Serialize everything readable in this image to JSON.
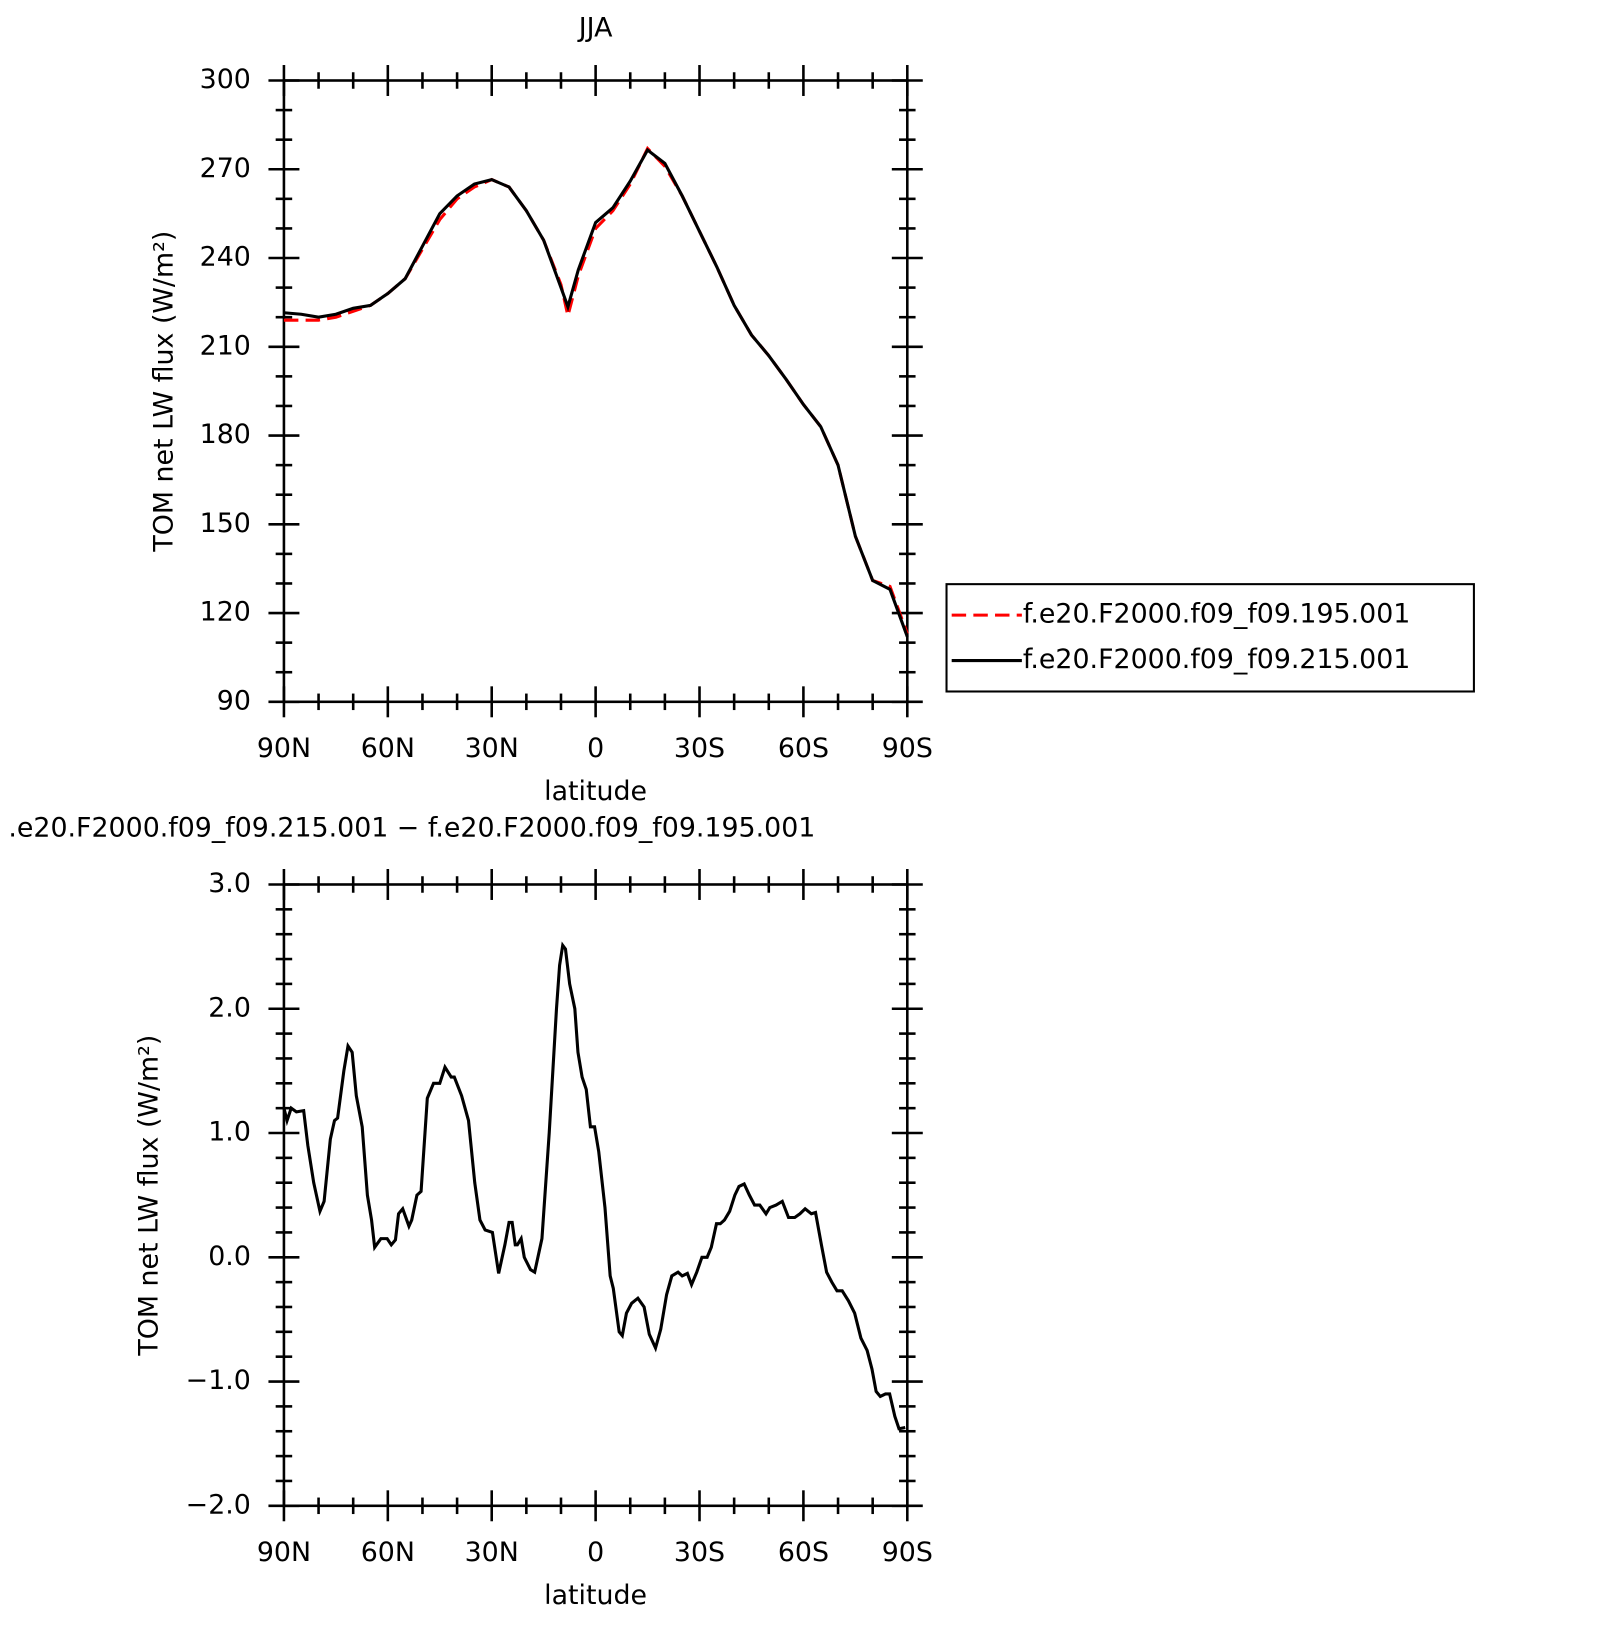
{
  "chart_data": [
    {
      "type": "line",
      "title": "JJA",
      "xlabel": "latitude",
      "ylabel": "TOM net LW flux (W/m²)",
      "x": [
        90,
        85,
        80,
        75,
        70,
        65,
        60,
        55,
        50,
        45,
        40,
        35,
        30,
        25,
        20,
        15,
        10,
        8,
        5,
        0,
        -5,
        -10,
        -15,
        -20,
        -25,
        -30,
        -35,
        -40,
        -45,
        -50,
        -55,
        -60,
        -65,
        -70,
        -75,
        -80,
        -85,
        -90
      ],
      "series": [
        {
          "name": "f.e20.F2000.f09_f09.195.001",
          "color": "#ff0000",
          "linestyle": "dashed",
          "values": [
            219,
            219,
            219,
            220,
            222,
            224,
            228,
            233,
            243,
            253,
            260,
            264,
            266.5,
            264,
            256,
            246,
            231,
            220.5,
            234,
            250,
            256,
            265,
            277,
            271,
            261,
            249,
            237,
            224,
            214,
            207,
            199,
            190.5,
            183,
            170,
            146,
            131,
            129,
            113
          ]
        },
        {
          "name": "f.e20.F2000.f09_f09.215.001",
          "color": "#000000",
          "linestyle": "solid",
          "values": [
            221.5,
            221,
            220,
            221,
            223,
            224,
            228,
            233,
            244,
            255,
            261,
            265,
            266.5,
            264,
            256,
            246,
            230,
            223.5,
            236,
            252,
            257,
            266,
            276.5,
            272,
            261,
            249,
            237,
            224,
            214,
            207,
            199,
            190.5,
            183,
            170,
            146,
            131,
            128,
            112
          ]
        }
      ],
      "xlim": [
        90,
        -90
      ],
      "xticks": [
        {
          "value": 90,
          "label": "90N"
        },
        {
          "value": 60,
          "label": "60N"
        },
        {
          "value": 30,
          "label": "30N"
        },
        0,
        {
          "value": -30,
          "label": "30S"
        },
        {
          "value": -60,
          "label": "60S"
        },
        {
          "value": -90,
          "label": "90S"
        }
      ],
      "ylim": [
        90,
        300
      ],
      "yticks": [
        90,
        120,
        150,
        180,
        210,
        240,
        270,
        300
      ],
      "legend": "right"
    },
    {
      "type": "line",
      "title": ".e20.F2000.f09_f09.215.001 − f.e20.F2000.f09_f09.195.001",
      "xlabel": "latitude",
      "ylabel": "TOM net LW flux (W/m²)",
      "x": [
        90,
        89.1,
        87.9,
        86.4,
        84.3,
        83.1,
        81.4,
        79.6,
        78.4,
        76.6,
        75.4,
        74.5,
        72.7,
        71.5,
        70.3,
        69.1,
        67.4,
        65.9,
        64.7,
        63.8,
        62,
        60.2,
        59,
        57.8,
        56.9,
        55.7,
        53.9,
        53.1,
        51.6,
        50.4,
        48.6,
        46.8,
        45,
        43.5,
        41.7,
        40.8,
        38.7,
        36.7,
        34.9,
        33.4,
        31.9,
        29.8,
        28,
        26.2,
        25,
        24.1,
        23.2,
        22.6,
        21.5,
        20.6,
        18.8,
        17.6,
        15.5,
        13.4,
        11.3,
        10.4,
        9.5,
        8.7,
        7.5,
        6,
        5.1,
        3.9,
        2.7,
        1.5,
        0.3,
        -0.9,
        -2.7,
        -4.2,
        -5.1,
        -6.8,
        -7.7,
        -8.9,
        -10.4,
        -12.2,
        -14,
        -15.5,
        -17.3,
        -18.8,
        -20.5,
        -22,
        -23.8,
        -25,
        -26.5,
        -27.7,
        -29.2,
        -30.7,
        -32.2,
        -33.4,
        -34.9,
        -36,
        -37.2,
        -38.7,
        -40.2,
        -41.4,
        -42.9,
        -44.4,
        -45.9,
        -47.4,
        -49.2,
        -50.3,
        -52.1,
        -53.9,
        -55.7,
        -57.5,
        -59,
        -60.5,
        -62.3,
        -63.5,
        -65.2,
        -66.7,
        -68.2,
        -69.7,
        -71.2,
        -73,
        -74.8,
        -76.6,
        -78.4,
        -79.8,
        -81,
        -82.2,
        -83.7,
        -84.9,
        -86.4,
        -87.6,
        -89.4
      ],
      "values": [
        1.2,
        1.1,
        1.2,
        1.17,
        1.18,
        0.9,
        0.6,
        0.37,
        0.45,
        0.95,
        1.1,
        1.12,
        1.5,
        1.7,
        1.65,
        1.3,
        1.05,
        0.5,
        0.3,
        0.08,
        0.15,
        0.15,
        0.1,
        0.14,
        0.35,
        0.39,
        0.25,
        0.3,
        0.5,
        0.53,
        1.28,
        1.4,
        1.4,
        1.53,
        1.45,
        1.45,
        1.3,
        1.1,
        0.6,
        0.3,
        0.22,
        0.2,
        -0.13,
        0.1,
        0.28,
        0.28,
        0.1,
        0.1,
        0.15,
        0,
        -0.1,
        -0.12,
        0.15,
        1.0,
        2.0,
        2.35,
        2.51,
        2.48,
        2.2,
        2.0,
        1.65,
        1.45,
        1.35,
        1.05,
        1.05,
        0.85,
        0.4,
        -0.15,
        -0.25,
        -0.6,
        -0.63,
        -0.45,
        -0.37,
        -0.33,
        -0.4,
        -0.62,
        -0.73,
        -0.58,
        -0.3,
        -0.15,
        -0.12,
        -0.15,
        -0.13,
        -0.22,
        -0.12,
        0.0,
        0.0,
        0.08,
        0.27,
        0.27,
        0.3,
        0.37,
        0.5,
        0.57,
        0.59,
        0.5,
        0.42,
        0.42,
        0.35,
        0.4,
        0.42,
        0.45,
        0.32,
        0.32,
        0.35,
        0.39,
        0.35,
        0.36,
        0.1,
        -0.12,
        -0.2,
        -0.27,
        -0.27,
        -0.35,
        -0.45,
        -0.65,
        -0.75,
        -0.9,
        -1.08,
        -1.12,
        -1.1,
        -1.1,
        -1.28,
        -1.38,
        -1.37
      ],
      "color": "#000000",
      "xlim": [
        90,
        -90
      ],
      "xticks": [
        {
          "value": 90,
          "label": "90N"
        },
        {
          "value": 60,
          "label": "60N"
        },
        {
          "value": 30,
          "label": "30N"
        },
        0,
        {
          "value": -30,
          "label": "30S"
        },
        {
          "value": -60,
          "label": "60S"
        },
        {
          "value": -90,
          "label": "90S"
        }
      ],
      "ylim": [
        -2,
        3
      ],
      "yticks": [
        {
          "value": -2,
          "label": "−2.0"
        },
        {
          "value": -1,
          "label": "−1.0"
        },
        {
          "value": 0,
          "label": "0.0"
        },
        {
          "value": 1,
          "label": "1.0"
        },
        {
          "value": 2,
          "label": "2.0"
        },
        {
          "value": 3,
          "label": "3.0"
        }
      ]
    }
  ]
}
